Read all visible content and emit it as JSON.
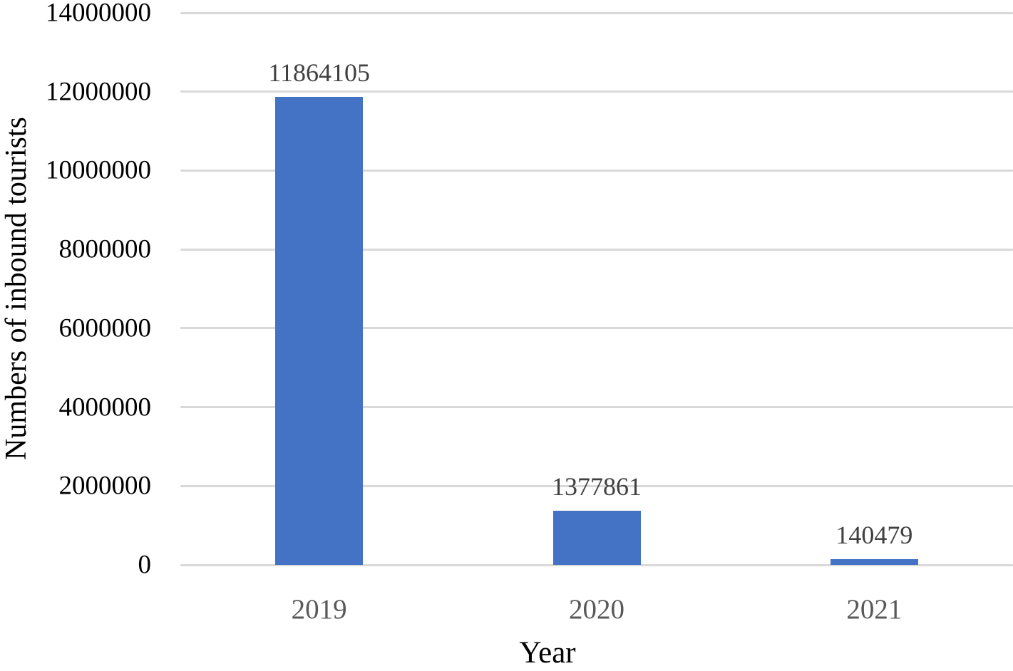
{
  "chart_data": {
    "type": "bar",
    "title": "",
    "xlabel": "Year",
    "ylabel": "Numbers of inbound tourists",
    "categories": [
      "2019",
      "2020",
      "2021"
    ],
    "values": [
      11864105,
      1377861,
      140479
    ],
    "data_labels": [
      "11864105",
      "1377861",
      "140479"
    ],
    "ylim": [
      0,
      14000000
    ],
    "ytick_step": 2000000,
    "ytick_labels": [
      "0",
      "2000000",
      "4000000",
      "6000000",
      "8000000",
      "10000000",
      "12000000",
      "14000000"
    ],
    "grid": true,
    "legend_position": "none",
    "colors": {
      "bar": "#4472C4",
      "gridline": "#D9D9D9",
      "y_tick_label": "#000000",
      "x_tick_label": "#595959",
      "data_label": "#404040",
      "background": "#ffffff"
    }
  }
}
